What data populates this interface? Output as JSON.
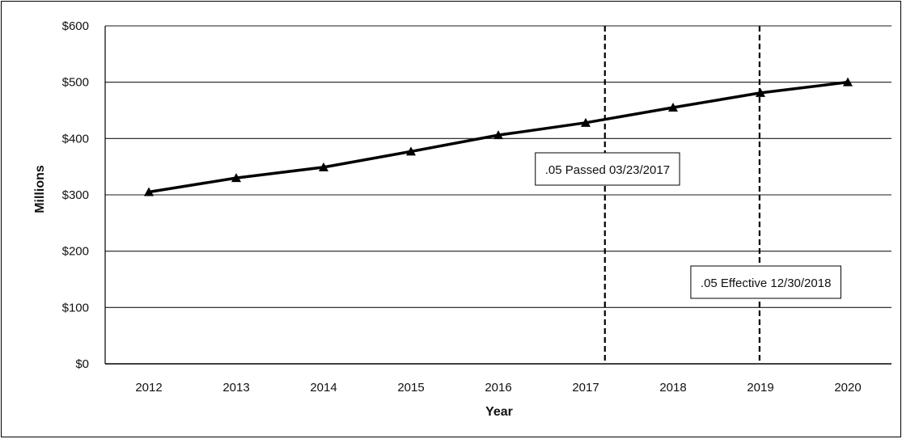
{
  "chart_data": {
    "type": "line",
    "title": "",
    "xlabel": "Year",
    "ylabel": "Millions",
    "categories": [
      "2012",
      "2013",
      "2014",
      "2015",
      "2016",
      "2017",
      "2018",
      "2019",
      "2020"
    ],
    "series": [
      {
        "values": [
          305,
          330,
          349,
          377,
          406,
          428,
          455,
          481,
          500
        ],
        "color": "#000000",
        "marker": "triangle"
      }
    ],
    "ylim": [
      0,
      600
    ],
    "yticks": [
      0,
      100,
      200,
      300,
      400,
      500,
      600
    ],
    "ytick_labels": [
      "$0",
      "$100",
      "$200",
      "$300",
      "$400",
      "$500",
      "$600"
    ],
    "grid": "horizontal",
    "annotations": [
      {
        "label": ".05 Passed 03/23/2017",
        "x": 2017.22,
        "line_style": "dashed"
      },
      {
        "label": ".05 Effective 12/30/2018",
        "x": 2018.99,
        "line_style": "dashed"
      }
    ]
  }
}
